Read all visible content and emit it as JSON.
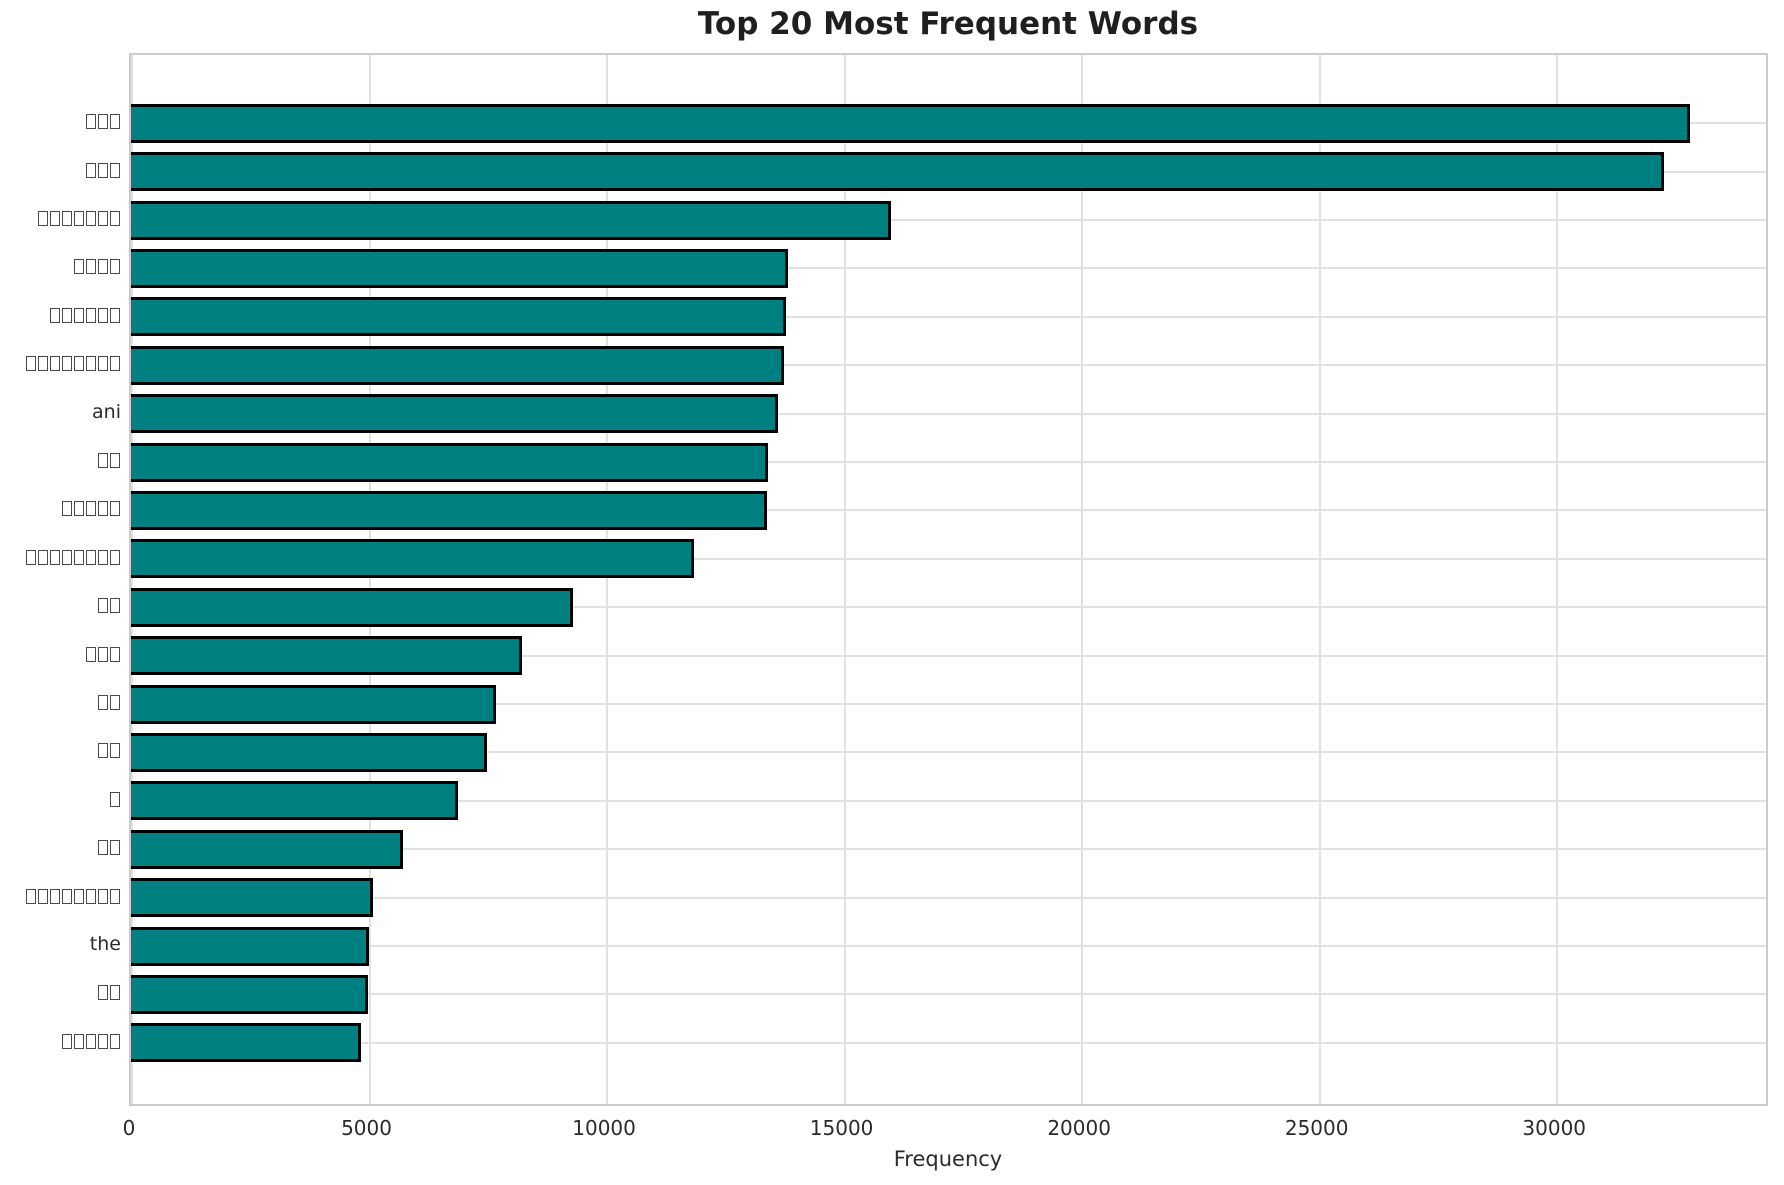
{
  "chart_data": {
    "type": "bar",
    "orientation": "horizontal",
    "title": "Top 20 Most Frequent Words",
    "xlabel": "Frequency",
    "ylabel": "",
    "categories": [
      "□□□",
      "□□□",
      "□□□□□□□",
      "□□□□",
      "□□□□□□",
      "□□□□□□□□",
      "ani",
      "□□",
      "□□□□□",
      "□□□□□□□□",
      "□□",
      "□□□",
      "□□",
      "□□",
      "□",
      "□□",
      "□□□□□□□□",
      "the",
      "□□",
      "□□□□□"
    ],
    "values": [
      32900,
      32340,
      16030,
      13860,
      13830,
      13780,
      13660,
      13450,
      13420,
      11890,
      9330,
      8240,
      7710,
      7520,
      6890,
      5740,
      5100,
      5020,
      5000,
      4850
    ],
    "xticks": [
      0,
      5000,
      10000,
      15000,
      20000,
      25000,
      30000
    ],
    "xlim": [
      0,
      34500
    ],
    "grid": true,
    "legend": false,
    "bar_color": "#008080",
    "bar_edge_color": "#000000",
    "grid_color": "#e1e1e1"
  }
}
